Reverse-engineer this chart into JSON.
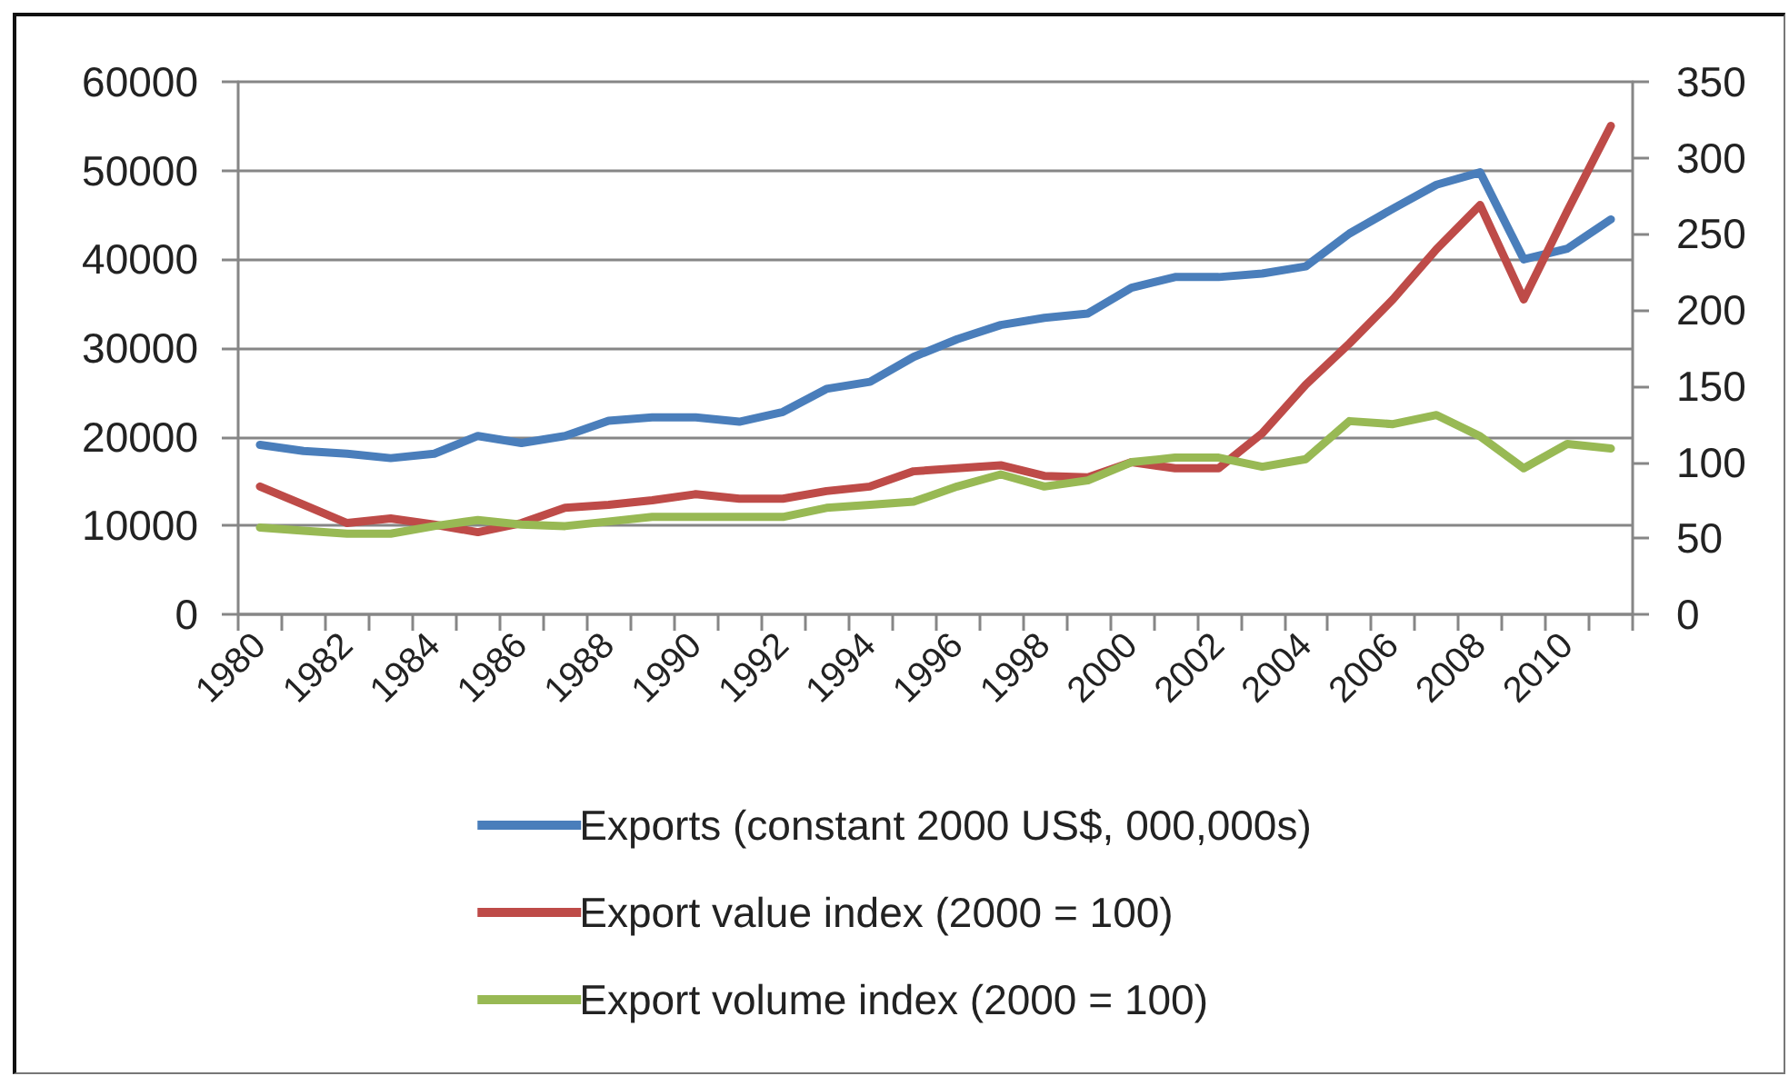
{
  "chart_data": {
    "type": "line",
    "categories": [
      "1980",
      null,
      "1982",
      null,
      "1984",
      null,
      "1986",
      null,
      "1988",
      null,
      "1990",
      null,
      "1992",
      null,
      "1994",
      null,
      "1996",
      null,
      "1998",
      null,
      "2000",
      null,
      "2002",
      null,
      "2004",
      null,
      "2006",
      null,
      "2008",
      null,
      "2010",
      null
    ],
    "series": [
      {
        "name": "Exports (constant 2000 US$, 000,000s)",
        "color": "#4a7ebb",
        "values": [
          19100,
          18400,
          18100,
          17600,
          18100,
          20100,
          19300,
          20100,
          21800,
          22200,
          22200,
          21700,
          22800,
          25400,
          26200,
          29000,
          31000,
          32600,
          33400,
          33900,
          36800,
          38000,
          38000,
          38400,
          39200,
          42900,
          45700,
          48400,
          49800,
          40000,
          41200,
          44500
        ]
      },
      {
        "name": "Export value index (2000 = 100)",
        "color": "#be4b48",
        "axis": "y2",
        "values": [
          84,
          72,
          60,
          63,
          59,
          54,
          60,
          70,
          72,
          75,
          79,
          76,
          76,
          81,
          84,
          94,
          96,
          98,
          91,
          90,
          100,
          96,
          96,
          119,
          151,
          178,
          207,
          240,
          269,
          207,
          265,
          321
        ]
      },
      {
        "name": "Export volume index (2000 = 100)",
        "color": "#98b954",
        "axis": "y2",
        "values": [
          57,
          55,
          53,
          53,
          58,
          62,
          59,
          58,
          61,
          64,
          64,
          64,
          64,
          70,
          72,
          74,
          84,
          92,
          84,
          88,
          100,
          103,
          103,
          97,
          102,
          127,
          125,
          131,
          117,
          96,
          112,
          109
        ]
      }
    ],
    "ylim": [
      0,
      60000
    ],
    "yticks": [
      0,
      10000,
      20000,
      30000,
      40000,
      50000,
      60000
    ],
    "y2lim": [
      0,
      350
    ],
    "y2ticks": [
      0,
      50,
      100,
      150,
      200,
      250,
      300,
      350
    ],
    "grid": "y",
    "legend": "bottom",
    "marker": "none",
    "line_style": "solid"
  }
}
